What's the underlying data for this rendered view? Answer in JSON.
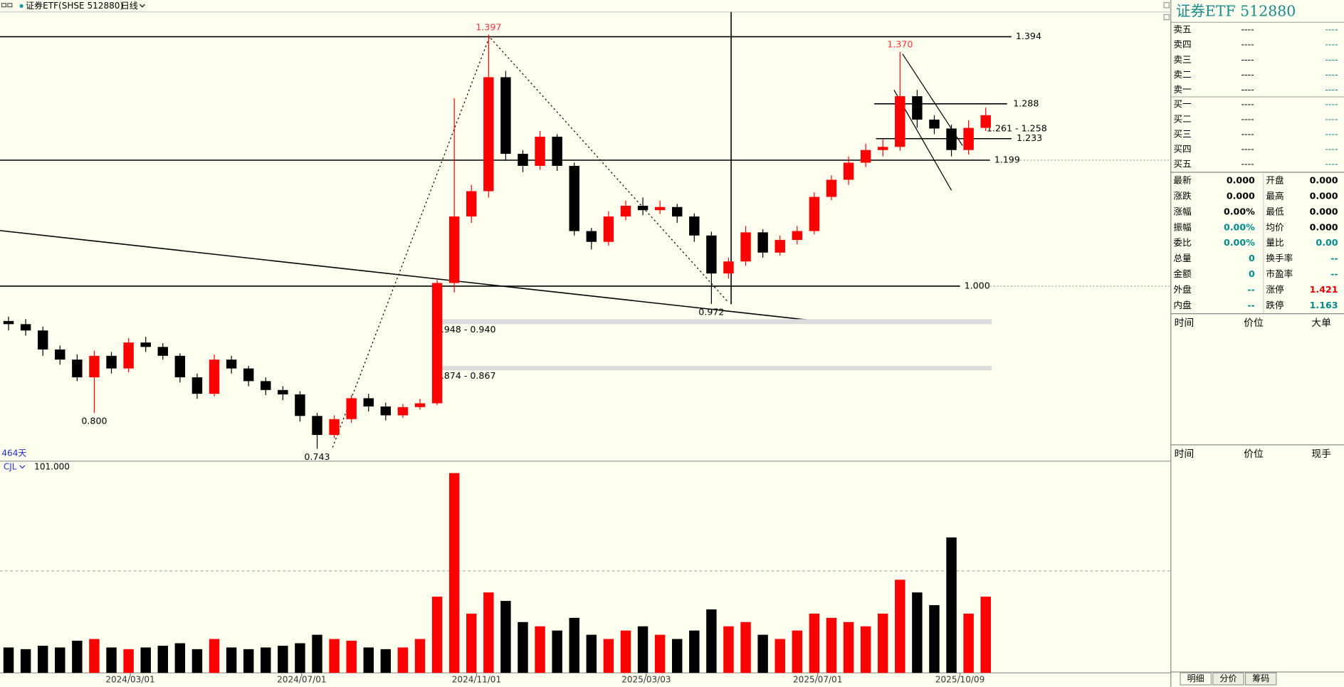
{
  "chart_data": {
    "type": "candlestick",
    "title": "证券ETF(SHSE 512880)",
    "period": "日线",
    "span_label": "464天",
    "xlim": [
      -0.5,
      67.8
    ],
    "xticks": [
      {
        "value": 7.1,
        "label": "2024/03/01"
      },
      {
        "value": 17.1,
        "label": "2024/07/01"
      },
      {
        "value": 27.3,
        "label": "2024/11/01"
      },
      {
        "value": 37.2,
        "label": "2025/03/03"
      },
      {
        "value": 47.2,
        "label": "2025/07/01"
      },
      {
        "value": 55.5,
        "label": "2025/10/09"
      }
    ],
    "ylim": [
      0.725,
      1.433
    ],
    "up_color": "#ff0000",
    "down_color": "#000000",
    "open": [
      0.945,
      0.94,
      0.93,
      0.9,
      0.884,
      0.856,
      0.89,
      0.87,
      0.911,
      0.904,
      0.89,
      0.856,
      0.83,
      0.884,
      0.87,
      0.85,
      0.836,
      0.829,
      0.795,
      0.765,
      0.79,
      0.823,
      0.81,
      0.796,
      0.809,
      0.815,
      1.005,
      1.11,
      1.15,
      1.33,
      1.209,
      1.19,
      1.236,
      1.19,
      1.087,
      1.07,
      1.11,
      1.127,
      1.12,
      1.125,
      1.11,
      1.08,
      1.02,
      1.039,
      1.085,
      1.053,
      1.073,
      1.087,
      1.141,
      1.168,
      1.195,
      1.215,
      1.22,
      1.3,
      1.263,
      1.249,
      1.215,
      1.25
    ],
    "high": [
      0.952,
      0.948,
      0.936,
      0.906,
      0.892,
      0.898,
      0.896,
      0.918,
      0.92,
      0.91,
      0.894,
      0.862,
      0.892,
      0.89,
      0.874,
      0.856,
      0.842,
      0.834,
      0.8,
      0.796,
      0.828,
      0.83,
      0.816,
      0.814,
      0.822,
      1.01,
      1.297,
      1.16,
      1.397,
      1.34,
      1.215,
      1.245,
      1.24,
      1.195,
      1.092,
      1.118,
      1.135,
      1.14,
      1.135,
      1.13,
      1.115,
      1.086,
      1.045,
      1.095,
      1.09,
      1.08,
      1.095,
      1.148,
      1.175,
      1.205,
      1.225,
      1.232,
      1.37,
      1.31,
      1.27,
      1.255,
      1.262,
      1.282
    ],
    "low": [
      0.93,
      0.922,
      0.89,
      0.876,
      0.85,
      0.8,
      0.862,
      0.864,
      0.896,
      0.884,
      0.848,
      0.822,
      0.826,
      0.862,
      0.842,
      0.828,
      0.82,
      0.786,
      0.743,
      0.76,
      0.784,
      0.802,
      0.788,
      0.792,
      0.805,
      0.812,
      0.99,
      1.1,
      1.14,
      1.198,
      1.18,
      1.184,
      1.182,
      1.08,
      1.058,
      1.064,
      1.104,
      1.112,
      1.114,
      1.1,
      1.07,
      0.972,
      1.012,
      1.032,
      1.045,
      1.048,
      1.066,
      1.082,
      1.136,
      1.16,
      1.188,
      1.205,
      1.214,
      1.25,
      1.24,
      1.205,
      1.208,
      1.245
    ],
    "close": [
      0.94,
      0.93,
      0.9,
      0.884,
      0.856,
      0.89,
      0.87,
      0.911,
      0.904,
      0.89,
      0.856,
      0.83,
      0.884,
      0.87,
      0.85,
      0.836,
      0.829,
      0.795,
      0.765,
      0.79,
      0.823,
      0.81,
      0.796,
      0.809,
      0.815,
      1.005,
      1.11,
      1.15,
      1.33,
      1.209,
      1.19,
      1.236,
      1.19,
      1.087,
      1.07,
      1.11,
      1.127,
      1.12,
      1.125,
      1.11,
      1.08,
      1.02,
      1.039,
      1.085,
      1.053,
      1.073,
      1.087,
      1.141,
      1.168,
      1.195,
      1.215,
      1.22,
      1.3,
      1.263,
      1.249,
      1.215,
      1.25,
      1.27
    ],
    "levels": [
      1.394,
      1.288,
      1.233,
      1.199,
      {
        "value": 1,
        "label": "1.000"
      }
    ],
    "zones": [
      {
        "values": [
          0.948,
          0.94
        ],
        "label": "0.948 - 0.940"
      },
      {
        "values": [
          0.874,
          0.867
        ],
        "label": "0.874 - 0.867"
      }
    ],
    "range_labels": [
      {
        "values": [
          1.261,
          1.258
        ],
        "label": "1.261 - 1.258"
      }
    ],
    "high_labels": [
      1.397,
      {
        "value": 1.37,
        "label": "1.370"
      }
    ],
    "low_labels": [
      {
        "value": 0.8,
        "label": "0.800"
      },
      0.743,
      0.972
    ],
    "volume": {
      "name": "CJL",
      "current": {
        "value": 101,
        "label": "101.000"
      },
      "ylim": [
        0,
        240
      ],
      "values": [
        30,
        28,
        32,
        30,
        38,
        40,
        30,
        28,
        30,
        32,
        35,
        28,
        40,
        30,
        28,
        30,
        32,
        35,
        45,
        40,
        38,
        30,
        28,
        30,
        40,
        90,
        236,
        70,
        95,
        85,
        60,
        55,
        50,
        65,
        45,
        40,
        50,
        55,
        45,
        40,
        50,
        75,
        55,
        60,
        45,
        40,
        50,
        70,
        65,
        60,
        55,
        70,
        110,
        95,
        80,
        160,
        70,
        90
      ]
    }
  },
  "quote_panel": {
    "title": "证券ETF  512880",
    "asks": [
      {
        "label": "卖五",
        "price": "----",
        "volume": "----"
      },
      {
        "label": "卖四",
        "price": "----",
        "volume": "----"
      },
      {
        "label": "卖三",
        "price": "----",
        "volume": "----"
      },
      {
        "label": "卖二",
        "price": "----",
        "volume": "----"
      },
      {
        "label": "卖一",
        "price": "----",
        "volume": "----"
      }
    ],
    "bids": [
      {
        "label": "买一",
        "price": "----",
        "volume": "----"
      },
      {
        "label": "买二",
        "price": "----",
        "volume": "----"
      },
      {
        "label": "买三",
        "price": "----",
        "volume": "----"
      },
      {
        "label": "买四",
        "price": "----",
        "volume": "----"
      },
      {
        "label": "买五",
        "price": "----",
        "volume": "----"
      }
    ],
    "stats": [
      {
        "label": "最新",
        "value": "0.000",
        "color": "#000000"
      },
      {
        "label": "开盘",
        "value": "0.000",
        "color": "#000000"
      },
      {
        "label": "涨跌",
        "value": "0.000",
        "color": "#000000"
      },
      {
        "label": "最高",
        "value": "0.000",
        "color": "#000000"
      },
      {
        "label": "涨幅",
        "value": "0.00%",
        "color": "#000000"
      },
      {
        "label": "最低",
        "value": "0.000",
        "color": "#000000"
      },
      {
        "label": "振幅",
        "value": "0.00%",
        "color": "#008b8b"
      },
      {
        "label": "均价",
        "value": "0.000",
        "color": "#000000"
      },
      {
        "label": "委比",
        "value": "0.00%",
        "color": "#008b8b"
      },
      {
        "label": "量比",
        "value": "0.00",
        "color": "#008b8b"
      },
      {
        "label": "总量",
        "value": "0",
        "color": "#008b8b"
      },
      {
        "label": "换手率",
        "value": "--",
        "color": "#008b8b"
      },
      {
        "label": "金额",
        "value": "0",
        "color": "#008b8b"
      },
      {
        "label": "市盈率",
        "value": "--",
        "color": "#008b8b"
      },
      {
        "label": "外盘",
        "value": "--",
        "color": "#008b8b"
      },
      {
        "label": "涨停",
        "value": "1.421",
        "color": "#e00000"
      },
      {
        "label": "内盘",
        "value": "--",
        "color": "#008b8b"
      },
      {
        "label": "跌停",
        "value": "1.163",
        "color": "#008b8b"
      }
    ],
    "trades_header": [
      "时间",
      "价位",
      "大单"
    ],
    "ticks_header": [
      "时间",
      "价位",
      "现手"
    ],
    "tabs": [
      "明细",
      "分价",
      "筹码"
    ]
  }
}
